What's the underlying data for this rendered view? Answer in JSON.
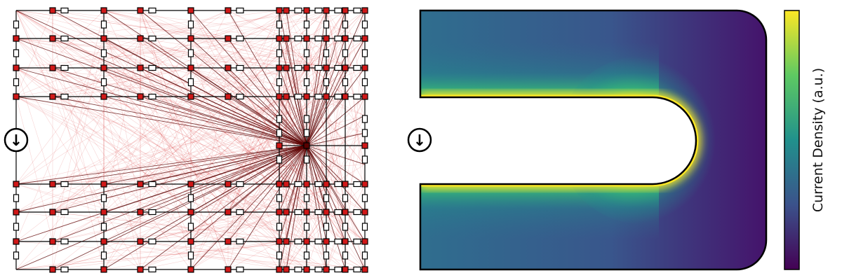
{
  "network_panel": {
    "source_symbol": "↓"
  },
  "density_panel": {
    "source_symbol": "↓"
  },
  "colorbar": {
    "label": "Current Density (a.u.)",
    "colors": [
      "#440154",
      "#3b528b",
      "#21918c",
      "#5ec962",
      "#fde725"
    ]
  },
  "colors": {
    "network_line": "#d01818",
    "strong_line": "#5a0000",
    "node_fill": "#d01818",
    "resistor_fill": "#ffffff",
    "outline": "#000000"
  }
}
